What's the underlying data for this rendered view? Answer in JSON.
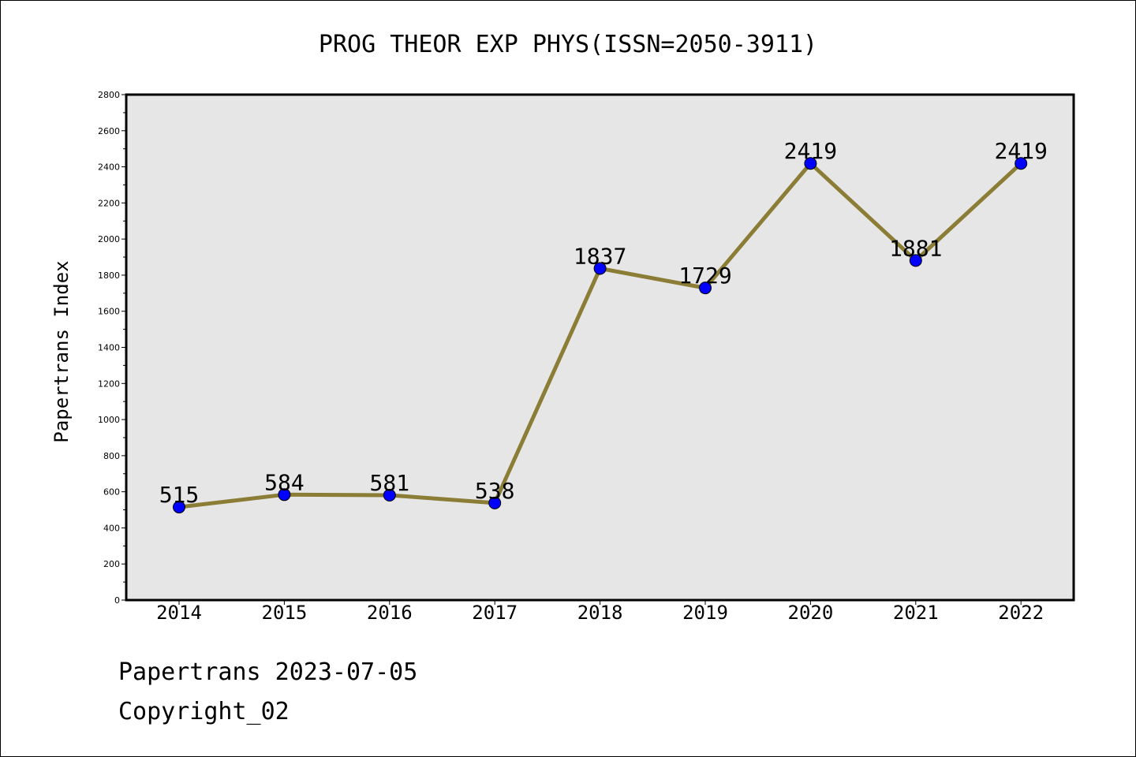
{
  "chart_data": {
    "type": "line",
    "title": "PROG THEOR EXP PHYS(ISSN=2050-3911)",
    "xlabel": "",
    "ylabel": "Papertrans Index",
    "categories": [
      "2014",
      "2015",
      "2016",
      "2017",
      "2018",
      "2019",
      "2020",
      "2021",
      "2022"
    ],
    "values": [
      515,
      584,
      581,
      538,
      1837,
      1729,
      2419,
      1881,
      2419
    ],
    "ylim": [
      0,
      2800
    ],
    "yticks": [
      0,
      200,
      400,
      600,
      800,
      1000,
      1200,
      1400,
      1600,
      1800,
      2000,
      2200,
      2400,
      2600,
      2800
    ],
    "grid": false,
    "legend": "none",
    "colors": {
      "line": "#8b7d36",
      "marker": "#0000ff",
      "plot_background": "#e6e6e6"
    }
  },
  "footer": {
    "date_line": "Papertrans 2023-07-05",
    "copyright_line": "Copyright_02"
  }
}
